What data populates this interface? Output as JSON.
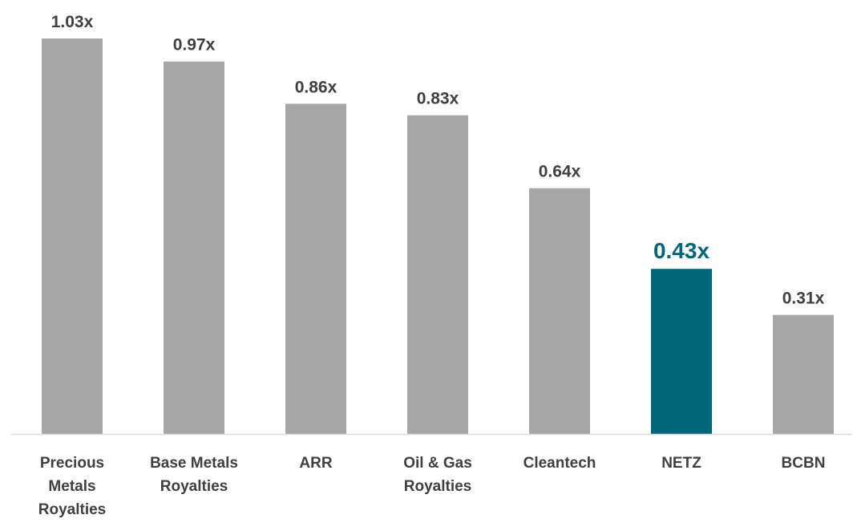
{
  "chart_data": {
    "type": "bar",
    "categories": [
      [
        "Precious",
        "Metals",
        "Royalties"
      ],
      [
        "Base Metals",
        "Royalties"
      ],
      [
        "ARR"
      ],
      [
        "Oil & Gas",
        "Royalties"
      ],
      [
        "Cleantech"
      ],
      [
        "NETZ"
      ],
      [
        "BCBN"
      ]
    ],
    "values": [
      1.03,
      0.97,
      0.86,
      0.83,
      0.64,
      0.43,
      0.31
    ],
    "value_labels": [
      "1.03x",
      "0.97x",
      "0.86x",
      "0.83x",
      "0.64x",
      "0.43x",
      "0.31x"
    ],
    "highlight_index": 5,
    "title": "",
    "xlabel": "",
    "ylabel": "",
    "ylim": [
      0,
      1.03
    ],
    "grid": false,
    "legend": "none",
    "colors": {
      "default_bar": "#a6a6a6",
      "highlight_bar": "#006679",
      "axis": "#d9d9d9",
      "label_text": "#3f3f3f",
      "highlight_text": "#006679"
    }
  }
}
